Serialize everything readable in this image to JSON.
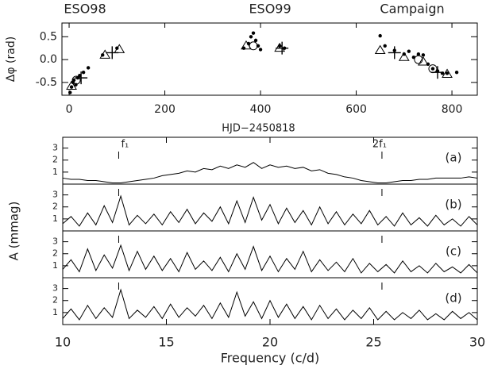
{
  "chart_data": [
    {
      "type": "scatter",
      "top_labels": [
        "ESO98",
        "ESO99",
        "Campaign"
      ],
      "x_label": "HJD−2450818",
      "y_label": "Δφ (rad)",
      "xlim": [
        -15,
        853
      ],
      "ylim": [
        -0.78,
        0.8
      ],
      "xticks": [
        0,
        200,
        400,
        600,
        800
      ],
      "yticks": [
        -0.5,
        {
          "value": 0,
          "label": "0.0"
        },
        0.5
      ],
      "series": [
        {
          "marker": "dot",
          "color": "#000000",
          "x": [
            2,
            5,
            8,
            10,
            14,
            18,
            22,
            30,
            40,
            70,
            100,
            365,
            375,
            380,
            385,
            390,
            395,
            400,
            440,
            450,
            650,
            660,
            680,
            700,
            710,
            720,
            730,
            740,
            750,
            760,
            770,
            780,
            790,
            810
          ],
          "values": [
            -0.72,
            -0.6,
            -0.5,
            -0.45,
            -0.55,
            -0.4,
            -0.35,
            -0.28,
            -0.18,
            0.1,
            0.25,
            0.25,
            0.35,
            0.5,
            0.58,
            0.42,
            0.3,
            0.22,
            0.3,
            0.25,
            0.52,
            0.3,
            0.2,
            0.12,
            0.18,
            0.05,
            0.12,
            0.1,
            -0.1,
            -0.2,
            -0.25,
            -0.3,
            -0.3,
            -0.28
          ]
        },
        {
          "marker": "triangle",
          "color": "#000000",
          "x": [
            5,
            75,
            105,
            370,
            440,
            650,
            700,
            740,
            790
          ],
          "values": [
            -0.58,
            0.1,
            0.22,
            0.3,
            0.25,
            0.2,
            0.05,
            -0.05,
            -0.32
          ]
        },
        {
          "marker": "circle",
          "color": "#000000",
          "x": [
            15,
            385,
            730,
            760
          ],
          "values": [
            -0.45,
            0.3,
            0.0,
            -0.2
          ]
        },
        {
          "marker": "plus",
          "color": "#000000",
          "x": [
            25,
            90,
            445,
            680,
            770
          ],
          "values": [
            -0.4,
            0.15,
            0.25,
            0.15,
            -0.28
          ]
        }
      ]
    },
    {
      "type": "line",
      "x_label": "Frequency (c/d)",
      "y_label": "A (mmag)",
      "xlim": [
        10,
        30
      ],
      "ylim": [
        0,
        3.9
      ],
      "xticks": [
        10,
        15,
        20,
        25,
        30
      ],
      "yticks": [
        1,
        2,
        3
      ],
      "annotations": [
        {
          "label": "f₁",
          "x": 12.7
        },
        {
          "label": "2f₁",
          "x": 25.4
        }
      ],
      "x": [
        10,
        10.4,
        10.8,
        11.2,
        11.6,
        12,
        12.4,
        12.8,
        13.2,
        13.6,
        14,
        14.4,
        14.8,
        15.2,
        15.6,
        16,
        16.4,
        16.8,
        17.2,
        17.6,
        18,
        18.4,
        18.8,
        19.2,
        19.6,
        20,
        20.4,
        20.8,
        21.2,
        21.6,
        22,
        22.4,
        22.8,
        23.2,
        23.6,
        24,
        24.4,
        24.8,
        25.2,
        25.6,
        26,
        26.4,
        26.8,
        27.2,
        27.6,
        28,
        28.4,
        28.8,
        29.2,
        29.6,
        30
      ],
      "series": [
        {
          "name": "(a)",
          "color": "#000000",
          "values": [
            0.5,
            0.4,
            0.4,
            0.3,
            0.3,
            0.2,
            0.1,
            0.1,
            0.2,
            0.3,
            0.4,
            0.5,
            0.7,
            0.8,
            0.9,
            1.1,
            1.0,
            1.3,
            1.2,
            1.5,
            1.3,
            1.6,
            1.4,
            1.8,
            1.3,
            1.6,
            1.4,
            1.5,
            1.3,
            1.4,
            1.1,
            1.2,
            0.9,
            0.8,
            0.6,
            0.5,
            0.3,
            0.2,
            0.1,
            0.1,
            0.2,
            0.3,
            0.3,
            0.4,
            0.4,
            0.5,
            0.5,
            0.5,
            0.5,
            0.6,
            0.5
          ]
        },
        {
          "name": "(b)",
          "color": "#000000",
          "values": [
            0.6,
            1.2,
            0.4,
            1.5,
            0.5,
            2.1,
            0.7,
            2.9,
            0.5,
            1.3,
            0.6,
            1.4,
            0.5,
            1.6,
            0.7,
            1.8,
            0.6,
            1.5,
            0.8,
            2.0,
            0.6,
            2.5,
            0.7,
            2.8,
            0.9,
            2.2,
            0.6,
            1.9,
            0.7,
            1.7,
            0.5,
            2.0,
            0.6,
            1.6,
            0.5,
            1.4,
            0.6,
            1.7,
            0.5,
            1.2,
            0.4,
            1.5,
            0.5,
            1.1,
            0.4,
            1.3,
            0.5,
            1.0,
            0.4,
            1.2,
            0.5
          ]
        },
        {
          "name": "(c)",
          "color": "#000000",
          "values": [
            0.7,
            1.5,
            0.5,
            2.4,
            0.6,
            1.9,
            0.8,
            2.7,
            0.6,
            2.2,
            0.7,
            1.8,
            0.6,
            1.6,
            0.5,
            2.1,
            0.7,
            1.4,
            0.6,
            1.7,
            0.5,
            2.0,
            0.7,
            2.6,
            0.6,
            1.8,
            0.5,
            1.6,
            0.7,
            2.2,
            0.5,
            1.5,
            0.6,
            1.3,
            0.5,
            1.6,
            0.4,
            1.2,
            0.5,
            1.1,
            0.4,
            1.4,
            0.5,
            1.0,
            0.4,
            1.2,
            0.5,
            0.9,
            0.4,
            1.1,
            0.4
          ]
        },
        {
          "name": "(d)",
          "color": "#000000",
          "values": [
            0.5,
            1.3,
            0.4,
            1.6,
            0.5,
            1.4,
            0.6,
            2.9,
            0.5,
            1.2,
            0.6,
            1.5,
            0.5,
            1.7,
            0.6,
            1.4,
            0.7,
            1.6,
            0.5,
            1.8,
            0.6,
            2.7,
            0.7,
            1.9,
            0.5,
            2.0,
            0.6,
            1.7,
            0.5,
            1.5,
            0.4,
            1.6,
            0.5,
            1.3,
            0.4,
            1.2,
            0.5,
            1.4,
            0.4,
            1.1,
            0.4,
            1.0,
            0.5,
            1.2,
            0.4,
            0.9,
            0.4,
            1.1,
            0.5,
            1.0,
            0.4
          ]
        }
      ]
    }
  ]
}
